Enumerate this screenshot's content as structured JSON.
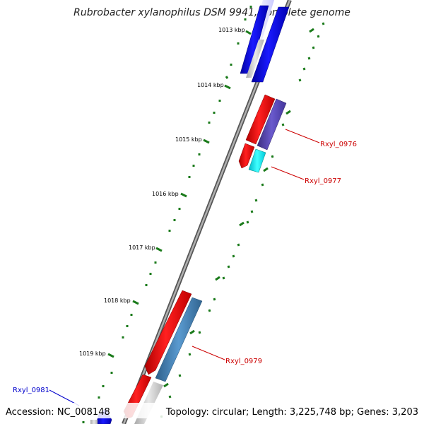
{
  "title": "Rubrobacter xylanophilus DSM 9941, complete genome",
  "footer": {
    "accession": "Accession: NC_008148",
    "summary": "Topology: circular; Length: 3,225,748 bp; Genes: 3,203"
  },
  "kbp_labels": [
    "1013 kbp",
    "1014 kbp",
    "1015 kbp",
    "1016 kbp",
    "1017 kbp",
    "1018 kbp",
    "1019 kbp"
  ],
  "gene_labels": [
    {
      "text": "Rxyl_0976",
      "color": "#cc0000"
    },
    {
      "text": "Rxyl_0977",
      "color": "#cc0000"
    },
    {
      "text": "Rxyl_0979",
      "color": "#cc0000"
    },
    {
      "text": "Rxyl_0981",
      "color": "#0000cc"
    }
  ],
  "colors": {
    "backbone": "#8a8a8a",
    "ticks": "#1a7a1a",
    "forward_cds": "#ff0000",
    "reverse_cds": "#0000ee",
    "rna": "#6a5acd",
    "cyan_feature": "#00e5ee",
    "steelblue_feature": "#4682b4",
    "gray_feature": "#c8c8c8"
  }
}
